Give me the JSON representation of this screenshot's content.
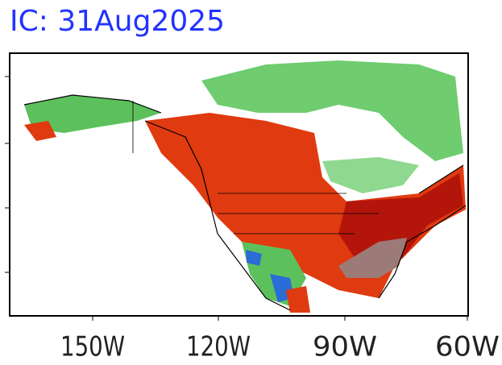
{
  "title": "IC: 31Aug2025",
  "x_axis": {
    "ticks": [
      "150W",
      "120W",
      "90W",
      "60W"
    ]
  }
}
